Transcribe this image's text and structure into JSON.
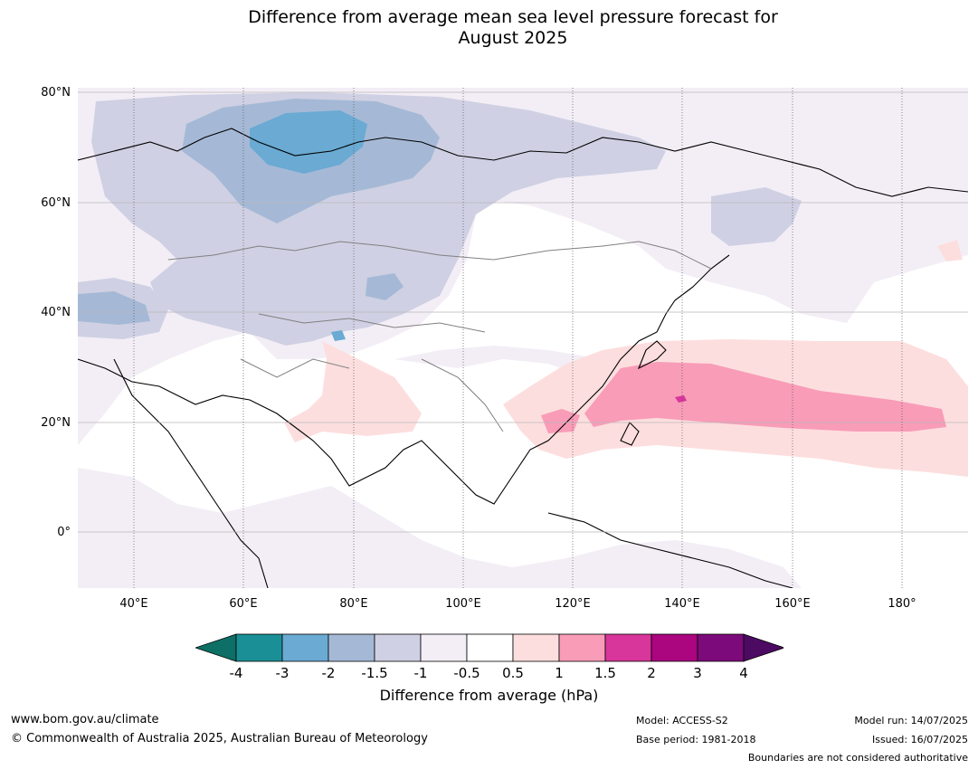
{
  "title_line1": "Difference from average mean sea level pressure forecast for",
  "title_line2": "August 2025",
  "lat_labels": [
    "80°N",
    "60°N",
    "40°N",
    "20°N",
    "0°"
  ],
  "lon_labels": [
    "40°E",
    "60°E",
    "80°E",
    "100°E",
    "120°E",
    "140°E",
    "160°E",
    "180°"
  ],
  "colorbar": {
    "label": "Difference from average (hPa)",
    "ticks": [
      "-4",
      "-3",
      "-2",
      "-1.5",
      "-1",
      "-0.5",
      "0.5",
      "1",
      "1.5",
      "2",
      "3",
      "4"
    ],
    "colors": [
      "#0d6f66",
      "#1b8f96",
      "#6aaad3",
      "#a5b9d6",
      "#cfd0e3",
      "#f3eef6",
      "#ffffff",
      "#fddede",
      "#f89cb8",
      "#d8369a",
      "#ab0580",
      "#7d0a7a",
      "#4d0a63"
    ]
  },
  "footer": {
    "url": "www.bom.gov.au/climate",
    "copyright": "© Commonwealth of Australia 2025, Australian Bureau of Meteorology",
    "model": "Model: ACCESS-S2",
    "base_period": "Base period: 1981-2018",
    "model_run": "Model run: 14/07/2025",
    "issued": "Issued: 16/07/2025",
    "disclaimer": "Boundaries are not considered authoritative"
  }
}
